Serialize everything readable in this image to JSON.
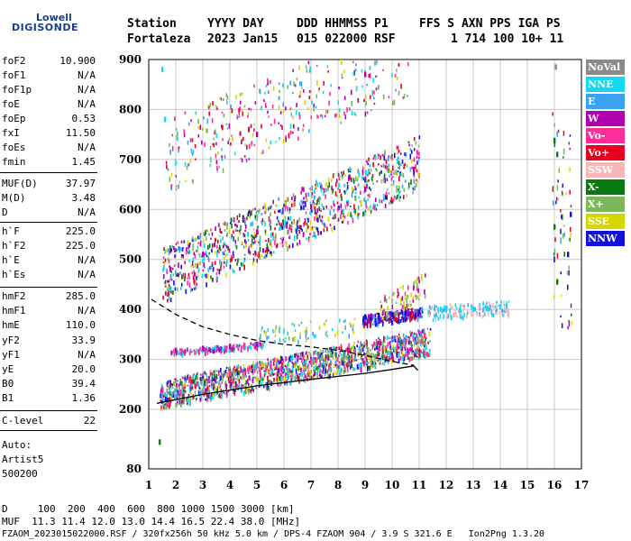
{
  "logo": {
    "line1": "Lowell",
    "line2": "DIGISONDE"
  },
  "header": {
    "row1": [
      "Station",
      "YYYY DAY",
      "DDD HHMMSS P1",
      "FFS S AXN PPS IGA PS"
    ],
    "row2": [
      "Fortaleza",
      "2023 Jan15",
      "015 022000 RSF",
      "1 714 100 10+ 11"
    ]
  },
  "params": [
    {
      "name": "foF2",
      "value": "10.900"
    },
    {
      "name": "foF1",
      "value": "N/A"
    },
    {
      "name": "foF1p",
      "value": "N/A"
    },
    {
      "name": "foE",
      "value": "N/A"
    },
    {
      "name": "foEp",
      "value": "0.53"
    },
    {
      "name": "fxI",
      "value": "11.50"
    },
    {
      "name": "foEs",
      "value": "N/A"
    },
    {
      "name": "fmin",
      "value": "1.45"
    },
    {
      "name": "MUF(D)",
      "value": "37.97"
    },
    {
      "name": "M(D)",
      "value": "3.48"
    },
    {
      "name": "D",
      "value": "N/A"
    },
    {
      "name": "h`F",
      "value": "225.0"
    },
    {
      "name": "h`F2",
      "value": "225.0"
    },
    {
      "name": "h`E",
      "value": "N/A"
    },
    {
      "name": "h`Es",
      "value": "N/A"
    },
    {
      "name": "hmF2",
      "value": "285.0"
    },
    {
      "name": "hmF1",
      "value": "N/A"
    },
    {
      "name": "hmE",
      "value": "110.0"
    },
    {
      "name": "yF2",
      "value": "33.9"
    },
    {
      "name": "yF1",
      "value": "N/A"
    },
    {
      "name": "yE",
      "value": "20.0"
    },
    {
      "name": "B0",
      "value": "39.4"
    },
    {
      "name": "B1",
      "value": "1.36"
    },
    {
      "name": "C-level",
      "value": "22"
    }
  ],
  "auto": {
    "line1": "Auto:",
    "line2": "Artist5",
    "line3": "500200"
  },
  "bottom": {
    "d_line": "D     100  200  400  600  800 1000 1500 3000 [km]",
    "muf_line": "MUF  11.3 11.4 12.0 13.0 14.4 16.5 22.4 38.0 [MHz]",
    "footer": "FZAOM_2023015022000.RSF / 320fx256h 50 kHz 5.0 km / DPS-4 FZAOM 904 / 3.9 S 321.6 E   Ion2Png 1.3.20"
  },
  "legend": [
    {
      "label": "NoVal",
      "color": "#8a8a8a"
    },
    {
      "label": "NNE",
      "color": "#13d8f0"
    },
    {
      "label": "E",
      "color": "#3aa3f0"
    },
    {
      "label": "W",
      "color": "#b000b0"
    },
    {
      "label": "Vo-",
      "color": "#ff2d9a"
    },
    {
      "label": "Vo+",
      "color": "#e8001e"
    },
    {
      "label": "SSW",
      "color": "#f7b7b7"
    },
    {
      "label": "X-",
      "color": "#0a7a10"
    },
    {
      "label": "X+",
      "color": "#7cb85a"
    },
    {
      "label": "SSE",
      "color": "#d6d600"
    },
    {
      "label": "NNW",
      "color": "#1010d8"
    }
  ],
  "chart_data": {
    "type": "scatter",
    "xlim": [
      1,
      17
    ],
    "ylim": [
      80,
      900
    ],
    "xticks": [
      "1",
      "2",
      "3",
      "4",
      "5",
      "6",
      "7",
      "8",
      "9",
      "10",
      "11",
      "12",
      "13",
      "14",
      "15",
      "16",
      "17"
    ],
    "yticks": [
      "200",
      "300",
      "400",
      "500",
      "600",
      "700",
      "800",
      "900"
    ],
    "ytick_bottom": "80",
    "grid": true,
    "series": [
      {
        "name": "NoVal",
        "points": [
          [
            16.05,
            885
          ]
        ]
      },
      {
        "name": "Vo-",
        "points": [
          [
            1.5,
            240
          ],
          [
            2.5,
            258
          ],
          [
            4,
            272
          ],
          [
            5.5,
            286
          ],
          [
            7,
            296
          ],
          [
            8.5,
            305
          ],
          [
            9.5,
            318
          ],
          [
            10.5,
            335
          ],
          [
            11.2,
            348
          ]
        ]
      },
      {
        "name": "X-",
        "points": [
          [
            16.0,
            738
          ],
          [
            16.1,
            710
          ],
          [
            16.0,
            565
          ],
          [
            16.1,
            455
          ],
          [
            1.4,
            134
          ]
        ]
      },
      {
        "name": "W",
        "points": [
          [
            2,
            318
          ],
          [
            3,
            322
          ],
          [
            4,
            326
          ],
          [
            5,
            330
          ],
          [
            1.8,
            480
          ],
          [
            3,
            510
          ],
          [
            5,
            555
          ],
          [
            7,
            605
          ],
          [
            9,
            640
          ],
          [
            10.8,
            680
          ],
          [
            5,
            750
          ],
          [
            9,
            870
          ]
        ]
      },
      {
        "name": "NNW",
        "points": [
          [
            9,
            385
          ],
          [
            9.5,
            388
          ],
          [
            10,
            390
          ],
          [
            10.5,
            392
          ],
          [
            11,
            395
          ],
          [
            16.5,
            510
          ],
          [
            16.6,
            590
          ]
        ]
      },
      {
        "name": "NNE",
        "points": [
          [
            1.5,
            880
          ],
          [
            1.6,
            780
          ],
          [
            12,
            402
          ],
          [
            12.5,
            398
          ],
          [
            13,
            400
          ],
          [
            13.5,
            402
          ],
          [
            14,
            405
          ]
        ]
      }
    ],
    "curves": [
      {
        "style": "solid",
        "points": [
          [
            1.3,
            212
          ],
          [
            3,
            230
          ],
          [
            5,
            247
          ],
          [
            7,
            260
          ],
          [
            9,
            272
          ],
          [
            10,
            280
          ],
          [
            10.8,
            287
          ],
          [
            10.95,
            278
          ]
        ]
      },
      {
        "style": "dashed",
        "points": [
          [
            1.1,
            420
          ],
          [
            2,
            390
          ],
          [
            3,
            365
          ],
          [
            4,
            350
          ],
          [
            5,
            338
          ],
          [
            6,
            330
          ],
          [
            7,
            325
          ],
          [
            8,
            318
          ],
          [
            9,
            308
          ],
          [
            10,
            296
          ],
          [
            10.8,
            288
          ]
        ]
      }
    ]
  }
}
